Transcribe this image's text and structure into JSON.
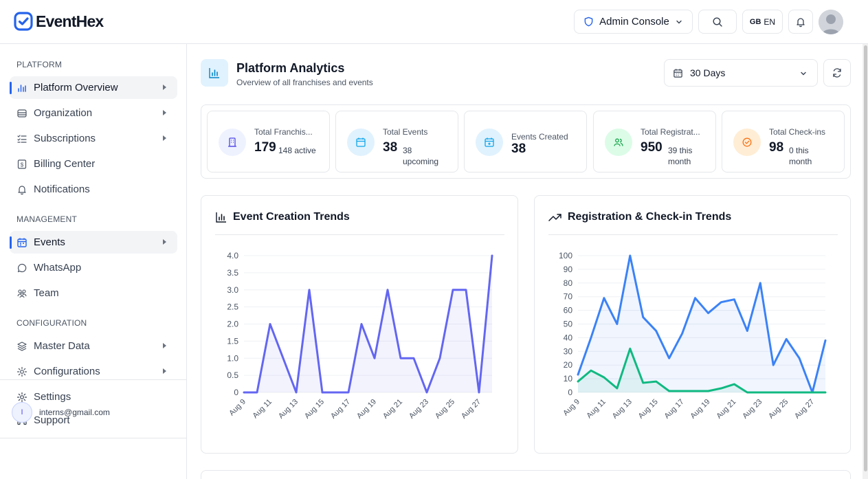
{
  "header": {
    "brand": "EventHex",
    "admin_label": "Admin Console",
    "lang_flag": "GB",
    "lang_code": "EN"
  },
  "sidebar": {
    "sections": {
      "platform": "PLATFORM",
      "management": "MANAGEMENT",
      "configuration": "CONFIGURATION"
    },
    "items": [
      {
        "label": "Platform Overview",
        "icon": "bar-chart-icon"
      },
      {
        "label": "Organization",
        "icon": "building-icon"
      },
      {
        "label": "Subscriptions",
        "icon": "list-check-icon"
      },
      {
        "label": "Billing Center",
        "icon": "receipt-icon"
      },
      {
        "label": "Notifications",
        "icon": "bell-icon"
      },
      {
        "label": "Events",
        "icon": "calendar-icon"
      },
      {
        "label": "WhatsApp",
        "icon": "chat-bubble-icon"
      },
      {
        "label": "Team",
        "icon": "users-icon"
      },
      {
        "label": "Master Data",
        "icon": "layers-icon"
      },
      {
        "label": "Configurations",
        "icon": "cog-icon"
      }
    ],
    "bottom": [
      {
        "label": "Settings",
        "icon": "gear-icon"
      },
      {
        "label": "Support",
        "icon": "headset-icon"
      }
    ],
    "user": {
      "initial": "I",
      "email": "interns@gmail.com"
    }
  },
  "page": {
    "title": "Platform Analytics",
    "subtitle": "Overview of all franchises and events",
    "range": "30 Days"
  },
  "stats": [
    {
      "label": "Total Franchis...",
      "value": "179",
      "sub": "148 active",
      "color": "#4f46e5"
    },
    {
      "label": "Total Events",
      "value": "38",
      "sub1": "38",
      "sub2": "upcoming",
      "color": "#0ea5e9"
    },
    {
      "label": "Events Created",
      "value": "38",
      "color": "#0ea5e9"
    },
    {
      "label": "Total Registrat...",
      "value": "950",
      "sub1": "39 this",
      "sub2": "month",
      "color": "#16a34a"
    },
    {
      "label": "Total Check-ins",
      "value": "98",
      "sub1": "0 this",
      "sub2": "month",
      "color": "#f97316"
    }
  ],
  "charts": {
    "left_title": "Event Creation Trends",
    "right_title": "Registration & Check-in Trends"
  },
  "chart_data": [
    {
      "type": "area",
      "title": "Event Creation Trends",
      "x": [
        "Aug 9",
        "Aug 10",
        "Aug 11",
        "Aug 12",
        "Aug 13",
        "Aug 14",
        "Aug 15",
        "Aug 16",
        "Aug 17",
        "Aug 18",
        "Aug 19",
        "Aug 20",
        "Aug 21",
        "Aug 22",
        "Aug 23",
        "Aug 24",
        "Aug 25",
        "Aug 26",
        "Aug 27",
        "Aug 28"
      ],
      "tick_labels": [
        "Aug 9",
        "Aug 11",
        "Aug 13",
        "Aug 15",
        "Aug 17",
        "Aug 19",
        "Aug 21",
        "Aug 23",
        "Aug 25",
        "Aug 27"
      ],
      "y_ticks": [
        "0",
        "0.5",
        "1.0",
        "1.5",
        "2.0",
        "2.5",
        "3.0",
        "3.5",
        "4.0"
      ],
      "ylim": [
        0,
        4
      ],
      "series": [
        {
          "color": "#6366f1",
          "values": [
            0,
            0,
            2,
            1,
            0,
            3,
            0,
            0,
            0,
            2,
            1,
            3,
            1,
            1,
            0,
            1,
            3,
            3,
            0,
            4
          ]
        }
      ]
    },
    {
      "type": "area",
      "title": "Registration & Check-in Trends",
      "x": [
        "Aug 9",
        "Aug 10",
        "Aug 11",
        "Aug 12",
        "Aug 13",
        "Aug 14",
        "Aug 15",
        "Aug 16",
        "Aug 17",
        "Aug 18",
        "Aug 19",
        "Aug 20",
        "Aug 21",
        "Aug 22",
        "Aug 23",
        "Aug 24",
        "Aug 25",
        "Aug 26",
        "Aug 27",
        "Aug 28"
      ],
      "tick_labels": [
        "Aug 9",
        "Aug 11",
        "Aug 13",
        "Aug 15",
        "Aug 17",
        "Aug 19",
        "Aug 21",
        "Aug 23",
        "Aug 25",
        "Aug 27"
      ],
      "y_ticks": [
        "0",
        "10",
        "20",
        "30",
        "40",
        "50",
        "60",
        "70",
        "80",
        "90",
        "100"
      ],
      "ylim": [
        0,
        100
      ],
      "series": [
        {
          "color": "#3b82f6",
          "values": [
            13,
            40,
            69,
            50,
            100,
            55,
            45,
            25,
            43,
            69,
            58,
            66,
            68,
            45,
            80,
            20,
            39,
            25,
            0,
            38
          ]
        },
        {
          "color": "#10b981",
          "values": [
            8,
            16,
            11,
            3,
            32,
            7,
            8,
            1,
            1,
            1,
            1,
            3,
            6,
            0,
            0,
            0,
            0,
            0,
            0,
            0
          ]
        }
      ]
    }
  ]
}
